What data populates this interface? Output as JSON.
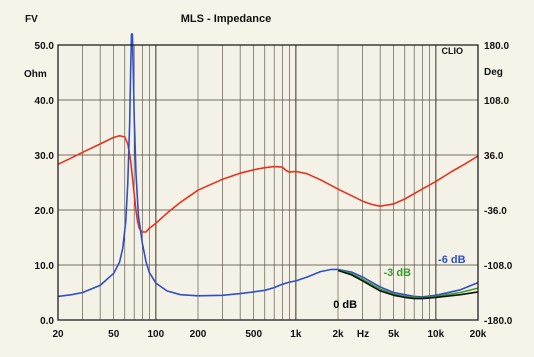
{
  "header": {
    "left_label": "FV",
    "title": "MLS - Impedance",
    "brand": "CLIO"
  },
  "axes": {
    "y_left_unit": "Ohm",
    "y_right_unit": "Deg",
    "x_unit": "Hz"
  },
  "chart_data": {
    "type": "line",
    "title": "MLS - Impedance",
    "xscale": "log",
    "xlim": [
      20,
      20000
    ],
    "ylim": [
      0,
      50
    ],
    "y2lim": [
      -180,
      180
    ],
    "grid": true,
    "x_ticks": [
      {
        "value": 20,
        "label": "20"
      },
      {
        "value": 50,
        "label": "50"
      },
      {
        "value": 100,
        "label": "100"
      },
      {
        "value": 200,
        "label": "200"
      },
      {
        "value": 500,
        "label": "500"
      },
      {
        "value": 1000,
        "label": "1k"
      },
      {
        "value": 2000,
        "label": "2k"
      },
      {
        "value": 5000,
        "label": "5k"
      },
      {
        "value": 10000,
        "label": "10k"
      },
      {
        "value": 20000,
        "label": "20k"
      }
    ],
    "y_ticks": [
      {
        "value": 0,
        "label": "0.0"
      },
      {
        "value": 10,
        "label": "10.0"
      },
      {
        "value": 20,
        "label": "20.0"
      },
      {
        "value": 30,
        "label": "30.0"
      },
      {
        "value": 40,
        "label": "40.0"
      },
      {
        "value": 50,
        "label": "50.0"
      }
    ],
    "y2_ticks": [
      {
        "value": -180,
        "label": "-180.0"
      },
      {
        "value": -108,
        "label": "-108.0"
      },
      {
        "value": -36,
        "label": "-36.0"
      },
      {
        "value": 36,
        "label": "36.0"
      },
      {
        "value": 108,
        "label": "108.0"
      },
      {
        "value": 180,
        "label": "180.0"
      }
    ],
    "series": [
      {
        "name": "",
        "axis": "left",
        "color": "#e8321e",
        "points": [
          [
            20,
            28.3
          ],
          [
            25,
            29.5
          ],
          [
            30,
            30.5
          ],
          [
            40,
            32
          ],
          [
            50,
            33.2
          ],
          [
            55,
            33.5
          ],
          [
            60,
            33.3
          ],
          [
            63,
            32
          ],
          [
            66,
            29
          ],
          [
            68,
            26
          ],
          [
            70,
            23
          ],
          [
            72,
            20
          ],
          [
            74,
            18
          ],
          [
            76,
            16.7
          ],
          [
            80,
            16
          ],
          [
            85,
            16
          ],
          [
            90,
            16.7
          ],
          [
            100,
            17.6
          ],
          [
            120,
            19.4
          ],
          [
            150,
            21.4
          ],
          [
            200,
            23.6
          ],
          [
            300,
            25.6
          ],
          [
            400,
            26.7
          ],
          [
            500,
            27.3
          ],
          [
            600,
            27.7
          ],
          [
            700,
            27.9
          ],
          [
            800,
            27.8
          ],
          [
            850,
            27.2
          ],
          [
            900,
            26.9
          ],
          [
            1000,
            27
          ],
          [
            1200,
            26.6
          ],
          [
            1500,
            25.5
          ],
          [
            2000,
            23.8
          ],
          [
            2500,
            22.6
          ],
          [
            3000,
            21.6
          ],
          [
            3500,
            21
          ],
          [
            4000,
            20.7
          ],
          [
            5000,
            21.1
          ],
          [
            6000,
            22
          ],
          [
            8000,
            23.8
          ],
          [
            10000,
            25.2
          ],
          [
            13000,
            27
          ],
          [
            16000,
            28.3
          ],
          [
            20000,
            29.8
          ]
        ]
      },
      {
        "name": "",
        "axis": "left",
        "color": "#2f4fc4",
        "points": [
          [
            20,
            4.3
          ],
          [
            25,
            4.6
          ],
          [
            30,
            5
          ],
          [
            40,
            6.3
          ],
          [
            50,
            8.5
          ],
          [
            55,
            10.5
          ],
          [
            58,
            13
          ],
          [
            61,
            18
          ],
          [
            63,
            25
          ],
          [
            65,
            36
          ],
          [
            66,
            45
          ],
          [
            67,
            52
          ],
          [
            68,
            52
          ],
          [
            69,
            45
          ],
          [
            70,
            37
          ],
          [
            72,
            27
          ],
          [
            75,
            19
          ],
          [
            80,
            14
          ],
          [
            85,
            10.6
          ],
          [
            90,
            8.6
          ],
          [
            100,
            6.7
          ],
          [
            120,
            5.3
          ],
          [
            150,
            4.6
          ],
          [
            200,
            4.4
          ],
          [
            300,
            4.5
          ],
          [
            400,
            4.8
          ],
          [
            500,
            5.1
          ],
          [
            600,
            5.4
          ],
          [
            700,
            5.9
          ],
          [
            800,
            6.5
          ],
          [
            900,
            6.9
          ],
          [
            1000,
            7.1
          ],
          [
            1200,
            7.8
          ],
          [
            1500,
            8.8
          ],
          [
            1800,
            9.2
          ],
          [
            2000,
            9.2
          ],
          [
            2500,
            8.7
          ],
          [
            3000,
            7.8
          ],
          [
            4000,
            6
          ],
          [
            5000,
            5
          ],
          [
            6000,
            4.6
          ],
          [
            7000,
            4.3
          ],
          [
            8000,
            4.2
          ],
          [
            10000,
            4.5
          ],
          [
            15000,
            5.5
          ],
          [
            20000,
            6.8
          ]
        ]
      },
      {
        "name": "",
        "axis": "left",
        "color": "#3a9a2a",
        "points": [
          [
            2000,
            9.1
          ],
          [
            2500,
            8.4
          ],
          [
            3000,
            7.4
          ],
          [
            4000,
            5.6
          ],
          [
            5000,
            4.7
          ],
          [
            6000,
            4.3
          ],
          [
            7000,
            4.1
          ],
          [
            8000,
            4
          ],
          [
            10000,
            4.3
          ],
          [
            15000,
            5
          ],
          [
            20000,
            5.8
          ]
        ]
      },
      {
        "name": "",
        "axis": "left",
        "color": "#111111",
        "points": [
          [
            2000,
            9
          ],
          [
            2500,
            8.2
          ],
          [
            3000,
            7.1
          ],
          [
            4000,
            5.3
          ],
          [
            5000,
            4.5
          ],
          [
            6000,
            4.1
          ],
          [
            7000,
            3.9
          ],
          [
            8000,
            3.9
          ],
          [
            10000,
            4.1
          ],
          [
            15000,
            4.6
          ],
          [
            20000,
            5.1
          ]
        ]
      }
    ],
    "annotations": [
      {
        "text": "-6 dB",
        "color": "#2f4fc4",
        "x": 13000,
        "y": 10.4
      },
      {
        "text": "-3 dB",
        "color": "#3a9a2a",
        "x": 5300,
        "y": 8.0
      },
      {
        "text": "0 dB",
        "color": "#000000",
        "x": 2250,
        "y": 2.2
      }
    ]
  }
}
